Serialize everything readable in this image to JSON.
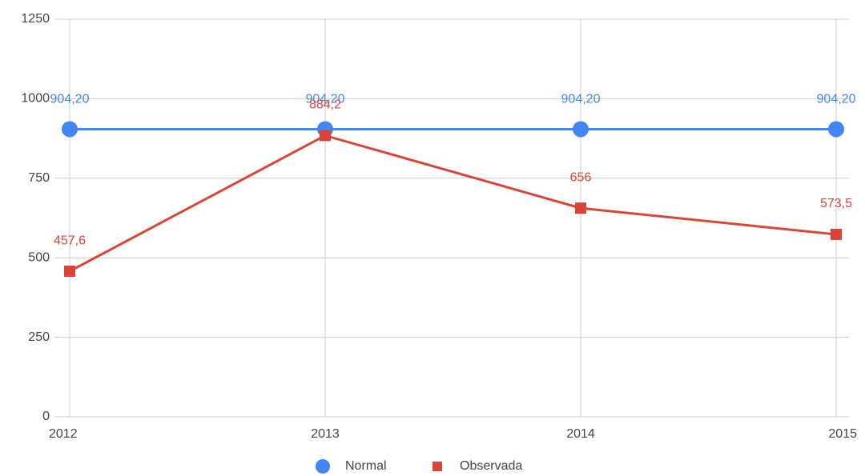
{
  "chart_data": {
    "type": "line",
    "categories": [
      "2012",
      "2013",
      "2014",
      "2015"
    ],
    "ylim": [
      0,
      1250
    ],
    "yticks": [
      0,
      250,
      500,
      750,
      1000,
      1250
    ],
    "grid": true,
    "legend": "bottom",
    "series": [
      {
        "name": "Normal",
        "color": "#4285f4",
        "marker": "circle",
        "values": [
          904.2,
          904.2,
          904.2,
          904.2
        ],
        "value_labels": [
          "904,20",
          "904,20",
          "904,20",
          "904,20"
        ]
      },
      {
        "name": "Observada",
        "color": "#db4437",
        "marker": "square",
        "values": [
          457.6,
          884.2,
          656,
          573.5
        ],
        "value_labels": [
          "457,6",
          "884,2",
          "656",
          "573,5"
        ]
      }
    ]
  }
}
